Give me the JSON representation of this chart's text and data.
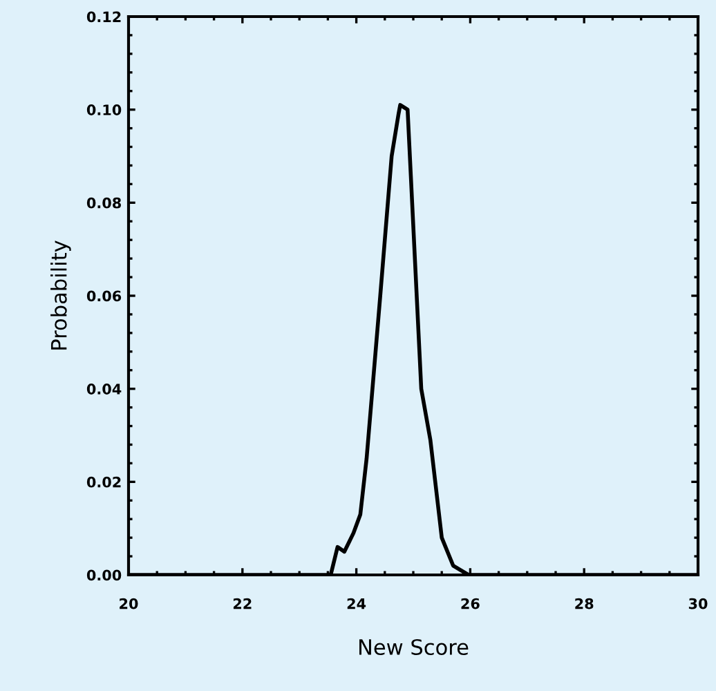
{
  "chart_data": {
    "type": "line",
    "xlabel": "New Score",
    "ylabel": "Probability",
    "x": [
      20,
      23.55,
      23.67,
      23.79,
      23.95,
      24.07,
      24.18,
      24.42,
      24.62,
      24.74,
      24.77,
      24.9,
      24.98,
      25.14,
      25.3,
      25.5,
      25.7,
      25.97,
      30
    ],
    "series": [
      {
        "color": "#000000",
        "values": [
          0,
          0,
          0.006,
          0.005,
          0.009,
          0.013,
          0.025,
          0.06,
          0.09,
          0.099,
          0.101,
          0.1,
          0.08,
          0.04,
          0.029,
          0.008,
          0.002,
          0,
          0
        ]
      }
    ],
    "xlim": [
      20,
      30
    ],
    "xticks": [
      20,
      22,
      24,
      26,
      28,
      30
    ],
    "ylim": [
      0,
      0.12
    ],
    "yticks": [
      {
        "value": 0,
        "label": "0.00"
      },
      0.02,
      0.04,
      0.06,
      0.08,
      {
        "value": 0.1,
        "label": "0.10"
      },
      0.12
    ],
    "grid": false,
    "legend": false,
    "marker": "none",
    "line_style": "solid"
  }
}
